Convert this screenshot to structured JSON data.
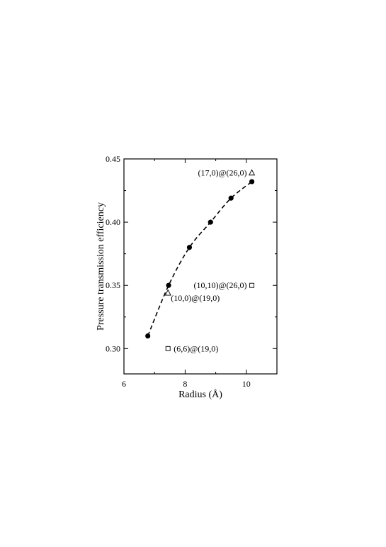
{
  "chart_data": {
    "type": "scatter",
    "xlabel": "Radius (Å)",
    "ylabel": "Pressure transmission efficiency",
    "xlim": [
      6,
      11
    ],
    "ylim": [
      0.28,
      0.45
    ],
    "x_ticks": [
      6,
      8,
      10
    ],
    "y_ticks": [
      0.3,
      0.35,
      0.4,
      0.45
    ],
    "x_tick_labels": [
      "6",
      "8",
      "10"
    ],
    "y_tick_labels": [
      "0.30",
      "0.35",
      "0.40",
      "0.45"
    ],
    "grid": false,
    "series": [
      {
        "marker": "filled-circle",
        "line": "dashed",
        "x": [
          6.78,
          7.46,
          8.14,
          8.83,
          9.5,
          10.18
        ],
        "y": [
          0.31,
          0.35,
          0.38,
          0.4,
          0.419,
          0.432
        ]
      },
      {
        "marker": "open-triangle",
        "line": "none",
        "x": [
          7.44,
          10.18
        ],
        "y": [
          0.344,
          0.439
        ]
      },
      {
        "marker": "open-square",
        "line": "none",
        "x": [
          7.44,
          10.18
        ],
        "y": [
          0.3,
          0.35
        ]
      }
    ],
    "annotations": [
      {
        "text": "(17,0)@(26,0)",
        "x": 10.18,
        "y": 0.439,
        "side": "left"
      },
      {
        "text": "(10,10)@(26,0)",
        "x": 10.18,
        "y": 0.35,
        "side": "left"
      },
      {
        "text": "(10,0)@(19,0)",
        "x": 7.44,
        "y": 0.344,
        "side": "right-below"
      },
      {
        "text": "(6,6)@(19,0)",
        "x": 7.44,
        "y": 0.3,
        "side": "right"
      }
    ]
  }
}
